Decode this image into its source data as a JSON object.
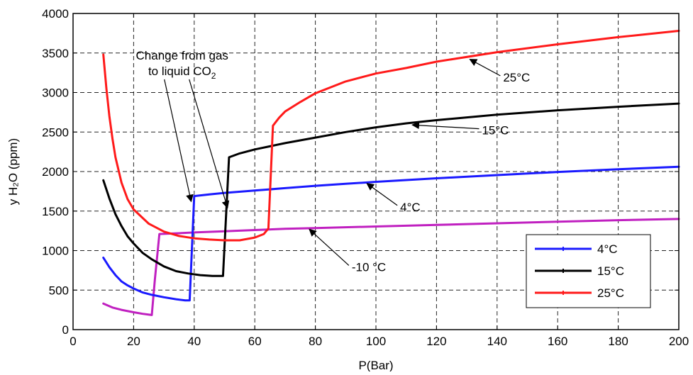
{
  "chart_data": {
    "type": "line",
    "title": "",
    "xlabel": "P(Bar)",
    "ylabel": "y H₂O (ppm)",
    "xlim": [
      0,
      200
    ],
    "ylim": [
      0,
      4000
    ],
    "grid": true,
    "x_ticks": [
      0,
      20,
      40,
      60,
      80,
      100,
      120,
      140,
      160,
      180,
      200
    ],
    "y_ticks": [
      0,
      500,
      1000,
      1500,
      2000,
      2500,
      3000,
      3500,
      4000
    ],
    "x_tick_labels": [
      "0",
      "20",
      "40",
      "60",
      "80",
      "100",
      "120",
      "140",
      "160",
      "180",
      "200"
    ],
    "y_tick_labels": [
      "0",
      "500",
      "1000",
      "1500",
      "2000",
      "2500",
      "3000",
      "3500",
      "4000"
    ],
    "legend_position": "bottom-right",
    "series": [
      {
        "name": "-10 °C",
        "color": "#c020c0",
        "in_legend": false,
        "points": [
          [
            10,
            330
          ],
          [
            13,
            280
          ],
          [
            16,
            250
          ],
          [
            20,
            220
          ],
          [
            23,
            200
          ],
          [
            26,
            185
          ],
          [
            27,
            630
          ],
          [
            28.5,
            1210
          ],
          [
            35,
            1220
          ],
          [
            40,
            1230
          ],
          [
            50,
            1245
          ],
          [
            60,
            1260
          ],
          [
            70,
            1275
          ],
          [
            80,
            1285
          ],
          [
            100,
            1305
          ],
          [
            120,
            1325
          ],
          [
            140,
            1345
          ],
          [
            160,
            1365
          ],
          [
            180,
            1385
          ],
          [
            200,
            1400
          ]
        ]
      },
      {
        "name": "4°C",
        "color": "#1a1aff",
        "in_legend": true,
        "points": [
          [
            10,
            910
          ],
          [
            12,
            790
          ],
          [
            14,
            690
          ],
          [
            16,
            610
          ],
          [
            18,
            560
          ],
          [
            20,
            520
          ],
          [
            23,
            470
          ],
          [
            26,
            440
          ],
          [
            30,
            410
          ],
          [
            34,
            385
          ],
          [
            37,
            370
          ],
          [
            38.5,
            370
          ],
          [
            40,
            1690
          ],
          [
            45,
            1710
          ],
          [
            50,
            1730
          ],
          [
            60,
            1760
          ],
          [
            70,
            1790
          ],
          [
            80,
            1820
          ],
          [
            90,
            1845
          ],
          [
            100,
            1870
          ],
          [
            120,
            1915
          ],
          [
            140,
            1955
          ],
          [
            160,
            1995
          ],
          [
            180,
            2030
          ],
          [
            200,
            2060
          ]
        ]
      },
      {
        "name": "15°C",
        "color": "#000000",
        "in_legend": true,
        "points": [
          [
            10,
            1890
          ],
          [
            12,
            1660
          ],
          [
            14,
            1460
          ],
          [
            16,
            1310
          ],
          [
            18,
            1180
          ],
          [
            20,
            1090
          ],
          [
            23,
            970
          ],
          [
            26,
            890
          ],
          [
            30,
            800
          ],
          [
            34,
            740
          ],
          [
            38,
            710
          ],
          [
            42,
            690
          ],
          [
            46,
            680
          ],
          [
            49.5,
            680
          ],
          [
            51.5,
            2180
          ],
          [
            55,
            2230
          ],
          [
            60,
            2280
          ],
          [
            70,
            2360
          ],
          [
            80,
            2430
          ],
          [
            90,
            2500
          ],
          [
            100,
            2560
          ],
          [
            110,
            2610
          ],
          [
            120,
            2650
          ],
          [
            140,
            2720
          ],
          [
            160,
            2775
          ],
          [
            180,
            2820
          ],
          [
            200,
            2860
          ]
        ]
      },
      {
        "name": "25°C",
        "color": "#ff1a1a",
        "in_legend": true,
        "points": [
          [
            10,
            3480
          ],
          [
            11,
            3050
          ],
          [
            12,
            2700
          ],
          [
            13,
            2420
          ],
          [
            14,
            2180
          ],
          [
            16,
            1860
          ],
          [
            18,
            1650
          ],
          [
            20,
            1520
          ],
          [
            25,
            1340
          ],
          [
            30,
            1240
          ],
          [
            35,
            1185
          ],
          [
            40,
            1155
          ],
          [
            45,
            1140
          ],
          [
            50,
            1130
          ],
          [
            55,
            1130
          ],
          [
            60,
            1165
          ],
          [
            63,
            1210
          ],
          [
            64.5,
            1280
          ],
          [
            66,
            2580
          ],
          [
            68,
            2680
          ],
          [
            70,
            2760
          ],
          [
            75,
            2880
          ],
          [
            80,
            2990
          ],
          [
            90,
            3140
          ],
          [
            100,
            3240
          ],
          [
            110,
            3310
          ],
          [
            120,
            3390
          ],
          [
            140,
            3510
          ],
          [
            160,
            3610
          ],
          [
            180,
            3700
          ],
          [
            200,
            3780
          ]
        ]
      }
    ],
    "annotations": [
      {
        "text": "Change from gas",
        "text2": "to liquid CO",
        "sub": "2",
        "label_at": [
          36,
          3310
        ],
        "arrows_to": [
          [
            39,
            1620
          ],
          [
            51,
            1540
          ]
        ]
      },
      {
        "text": "25°C",
        "label_at": [
          142,
          3140
        ],
        "arrow_to": [
          131,
          3420
        ]
      },
      {
        "text": "15°C",
        "label_at": [
          135,
          2470
        ],
        "arrow_to": [
          112,
          2590
        ]
      },
      {
        "text": "4°C",
        "label_at": [
          108,
          1500
        ],
        "arrow_to": [
          97,
          1850
        ]
      },
      {
        "text": "-10 °C",
        "label_at": [
          92,
          740
        ],
        "arrow_to": [
          78,
          1270
        ]
      }
    ]
  }
}
